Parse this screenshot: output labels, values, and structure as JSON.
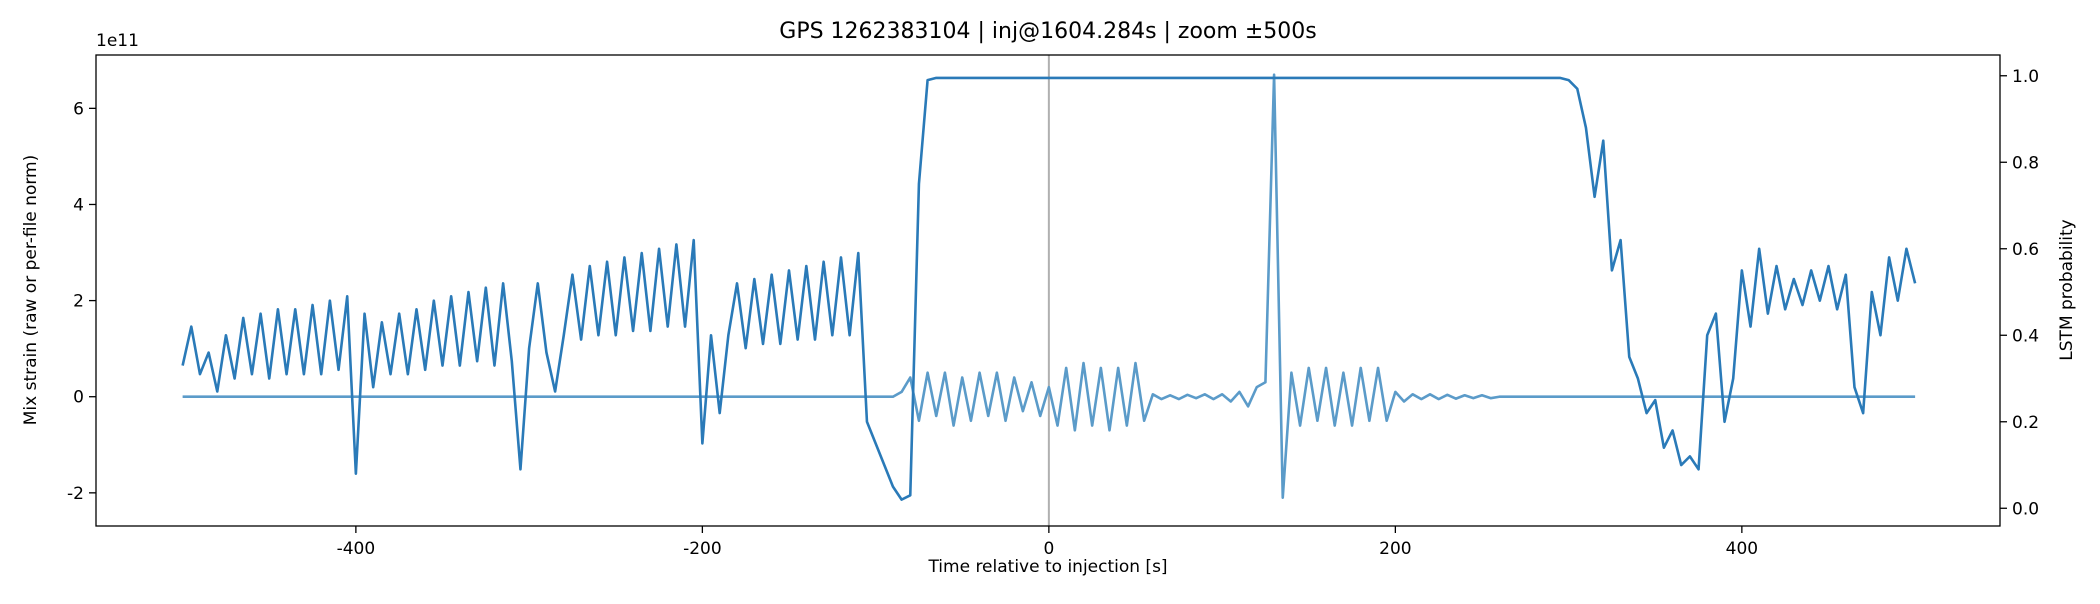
{
  "chart_data": {
    "type": "line",
    "title": "GPS 1262383104 | inj@1604.284s | zoom ±500s",
    "xlabel": "Time relative to injection [s]",
    "ylabel": "Mix strain (raw or per-file norm)",
    "y2label": "LSTM probability",
    "y_offset_label": "1e11",
    "xlim": [
      -550,
      549
    ],
    "xticks": [
      -400,
      -200,
      0,
      200,
      400
    ],
    "ylim": [
      -2.69,
      7.11
    ],
    "yticks": [
      -2,
      0,
      2,
      4,
      6
    ],
    "y2lim": [
      -0.041,
      1.048
    ],
    "y2ticks": [
      {
        "value": 0,
        "label": "0.0"
      },
      0.2,
      0.4,
      0.6,
      0.8,
      {
        "value": 1,
        "label": "1.0"
      }
    ],
    "vlines": [
      0
    ],
    "vline_color": "#b0b0b0",
    "x": [
      -500,
      -495,
      -490,
      -485,
      -480,
      -475,
      -470,
      -465,
      -460,
      -455,
      -450,
      -445,
      -440,
      -435,
      -430,
      -425,
      -420,
      -415,
      -410,
      -405,
      -400,
      -395,
      -390,
      -385,
      -380,
      -375,
      -370,
      -365,
      -360,
      -355,
      -350,
      -345,
      -340,
      -335,
      -330,
      -325,
      -320,
      -315,
      -310,
      -305,
      -300,
      -295,
      -290,
      -285,
      -280,
      -275,
      -270,
      -265,
      -260,
      -255,
      -250,
      -245,
      -240,
      -235,
      -230,
      -225,
      -220,
      -215,
      -210,
      -205,
      -200,
      -195,
      -190,
      -185,
      -180,
      -175,
      -170,
      -165,
      -160,
      -155,
      -150,
      -145,
      -140,
      -135,
      -130,
      -125,
      -120,
      -115,
      -110,
      -105,
      -100,
      -95,
      -90,
      -85,
      -80,
      -75,
      -70,
      -65,
      -60,
      -55,
      -50,
      -45,
      -40,
      -35,
      -30,
      -25,
      -20,
      -15,
      -10,
      -5,
      0,
      5,
      10,
      15,
      20,
      25,
      30,
      35,
      40,
      45,
      50,
      55,
      60,
      65,
      70,
      75,
      80,
      85,
      90,
      95,
      100,
      105,
      110,
      115,
      120,
      125,
      130,
      135,
      140,
      145,
      150,
      155,
      160,
      165,
      170,
      175,
      180,
      185,
      190,
      195,
      200,
      205,
      210,
      215,
      220,
      225,
      230,
      235,
      240,
      245,
      250,
      255,
      260,
      265,
      270,
      275,
      280,
      285,
      290,
      295,
      300,
      305,
      310,
      315,
      320,
      325,
      330,
      335,
      340,
      345,
      350,
      355,
      360,
      365,
      370,
      375,
      380,
      385,
      390,
      395,
      400,
      405,
      410,
      415,
      420,
      425,
      430,
      435,
      440,
      445,
      450,
      455,
      460,
      465,
      470,
      475,
      480,
      485,
      490,
      495,
      500
    ],
    "series": [
      {
        "color": "#5b9bc9",
        "values": [
          0,
          0,
          0,
          0,
          0,
          0,
          0,
          0,
          0,
          0,
          0,
          0,
          0,
          0,
          0,
          0,
          0,
          0,
          0,
          0,
          0,
          0,
          0,
          0,
          0,
          0,
          0,
          0,
          0,
          0,
          0,
          0,
          0,
          0,
          0,
          0,
          0,
          0,
          0,
          0,
          0,
          0,
          0,
          0,
          0,
          0,
          0,
          0,
          0,
          0,
          0,
          0,
          0,
          0,
          0,
          0,
          0,
          0,
          0,
          0,
          0,
          0,
          0,
          0,
          0,
          0,
          0,
          0,
          0,
          0,
          0,
          0,
          0,
          0,
          0,
          0,
          0,
          0,
          0,
          0,
          0,
          0,
          0,
          0.1,
          0.4,
          -0.5,
          0.5,
          -0.4,
          0.5,
          -0.6,
          0.4,
          -0.5,
          0.5,
          -0.4,
          0.5,
          -0.5,
          0.4,
          -0.3,
          0.3,
          -0.4,
          0.2,
          -0.6,
          0.6,
          -0.7,
          0.7,
          -0.6,
          0.6,
          -0.7,
          0.6,
          -0.6,
          0.7,
          -0.5,
          0.05,
          -0.05,
          0.03,
          -0.05,
          0.04,
          -0.03,
          0.05,
          -0.05,
          0.05,
          -0.1,
          0.1,
          -0.2,
          0.2,
          0.3,
          6.7,
          -2.1,
          0.5,
          -0.6,
          0.6,
          -0.5,
          0.6,
          -0.6,
          0.5,
          -0.6,
          0.6,
          -0.5,
          0.6,
          -0.5,
          0.1,
          -0.1,
          0.05,
          -0.05,
          0.05,
          -0.05,
          0.04,
          -0.04,
          0.03,
          -0.03,
          0.03,
          -0.03,
          0,
          0,
          0,
          0,
          0,
          0,
          0,
          0,
          0,
          0,
          0,
          0,
          0,
          0,
          0,
          0,
          0,
          0,
          0,
          0,
          0,
          0,
          0,
          0,
          0,
          0,
          0,
          0,
          0,
          0,
          0,
          0,
          0,
          0,
          0,
          0,
          0,
          0,
          0,
          0,
          0,
          0,
          0,
          0,
          0,
          0,
          0,
          0,
          0
        ]
      },
      {
        "color": "#2a7ab8",
        "axis": "y2",
        "values": [
          0.33,
          0.42,
          0.31,
          0.36,
          0.27,
          0.4,
          0.3,
          0.44,
          0.31,
          0.45,
          0.3,
          0.46,
          0.31,
          0.46,
          0.31,
          0.47,
          0.31,
          0.48,
          0.32,
          0.49,
          0.08,
          0.45,
          0.28,
          0.43,
          0.31,
          0.45,
          0.31,
          0.46,
          0.32,
          0.48,
          0.33,
          0.49,
          0.33,
          0.5,
          0.34,
          0.51,
          0.33,
          0.52,
          0.34,
          0.09,
          0.37,
          0.52,
          0.36,
          0.27,
          0.4,
          0.54,
          0.39,
          0.56,
          0.4,
          0.57,
          0.4,
          0.58,
          0.41,
          0.59,
          0.41,
          0.6,
          0.42,
          0.61,
          0.42,
          0.62,
          0.15,
          0.4,
          0.22,
          0.4,
          0.52,
          0.37,
          0.53,
          0.38,
          0.54,
          0.38,
          0.55,
          0.39,
          0.56,
          0.39,
          0.57,
          0.4,
          0.58,
          0.4,
          0.59,
          0.2,
          0.15,
          0.1,
          0.05,
          0.02,
          0.03,
          0.75,
          0.99,
          0.995,
          0.995,
          0.995,
          0.995,
          0.995,
          0.995,
          0.995,
          0.995,
          0.995,
          0.995,
          0.995,
          0.995,
          0.995,
          0.995,
          0.995,
          0.995,
          0.995,
          0.995,
          0.995,
          0.995,
          0.995,
          0.995,
          0.995,
          0.995,
          0.995,
          0.995,
          0.995,
          0.995,
          0.995,
          0.995,
          0.995,
          0.995,
          0.995,
          0.995,
          0.995,
          0.995,
          0.995,
          0.995,
          0.995,
          0.995,
          0.995,
          0.995,
          0.995,
          0.995,
          0.995,
          0.995,
          0.995,
          0.995,
          0.995,
          0.995,
          0.995,
          0.995,
          0.995,
          0.995,
          0.995,
          0.995,
          0.995,
          0.995,
          0.995,
          0.995,
          0.995,
          0.995,
          0.995,
          0.995,
          0.995,
          0.995,
          0.995,
          0.995,
          0.995,
          0.995,
          0.995,
          0.995,
          0.995,
          0.99,
          0.97,
          0.88,
          0.72,
          0.85,
          0.55,
          0.62,
          0.35,
          0.3,
          0.22,
          0.25,
          0.14,
          0.18,
          0.1,
          0.12,
          0.09,
          0.4,
          0.45,
          0.2,
          0.3,
          0.55,
          0.42,
          0.6,
          0.45,
          0.56,
          0.46,
          0.53,
          0.47,
          0.55,
          0.48,
          0.56,
          0.46,
          0.54,
          0.28,
          0.22,
          0.5,
          0.4,
          0.58,
          0.48,
          0.6,
          0.52
        ]
      }
    ]
  }
}
